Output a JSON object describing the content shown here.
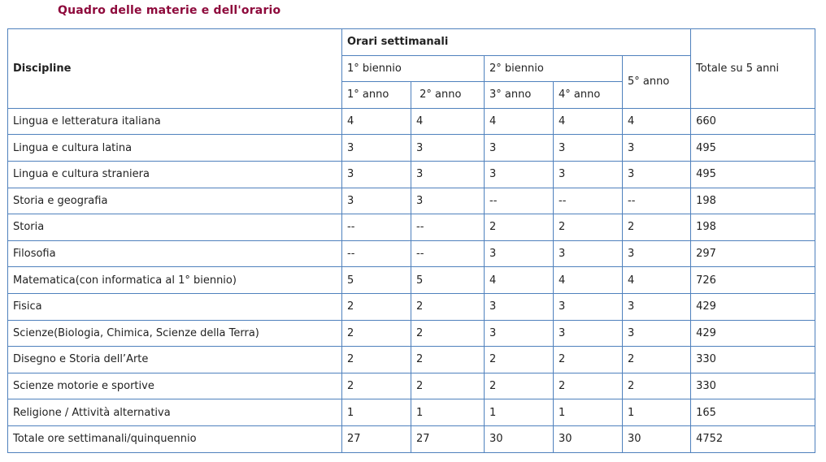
{
  "title": "Quadro delle materie e dell'orario",
  "header": {
    "discipline": "Discipline",
    "orari": "Orari settimanali",
    "biennio1": "1° biennio",
    "biennio2": "2° biennio",
    "anno5": "5° anno",
    "totale": "Totale su 5 anni",
    "anno1": "1° anno",
    "anno2": " 2° anno",
    "anno3": "3° anno",
    "anno4": "4° anno"
  },
  "colors": {
    "title": "#8e0a3c",
    "border": "#4f81bd"
  },
  "rows": [
    [
      "Lingua e letteratura italiana",
      "4",
      "4",
      "4",
      "4",
      "4",
      "660"
    ],
    [
      "Lingua e cultura latina",
      "3",
      "3",
      "3",
      "3",
      "3",
      "495"
    ],
    [
      "Lingua e cultura straniera",
      "3",
      "3",
      "3",
      "3",
      "3",
      "495"
    ],
    [
      "Storia e geografia",
      "3",
      "3",
      "--",
      "--",
      "--",
      "198"
    ],
    [
      "Storia",
      "--",
      "--",
      "2",
      "2",
      "2",
      "198"
    ],
    [
      "Filosofia",
      "--",
      "--",
      "3",
      "3",
      "3",
      "297"
    ],
    [
      "Matematica(con informatica al 1° biennio)",
      "5",
      "5",
      "4",
      "4",
      "4",
      "726"
    ],
    [
      "Fisica",
      "2",
      "2",
      "3",
      "3",
      "3",
      "429"
    ],
    [
      "Scienze(Biologia, Chimica, Scienze della Terra)",
      "2",
      "2",
      "3",
      "3",
      "3",
      "429"
    ],
    [
      "Disegno e Storia dell’Arte",
      "2",
      "2",
      "2",
      "2",
      "2",
      "330"
    ],
    [
      "Scienze motorie e sportive",
      "2",
      "2",
      "2",
      "2",
      "2",
      "330"
    ],
    [
      "Religione / Attività alternativa",
      "1",
      "1",
      "1",
      "1",
      "1",
      "165"
    ],
    [
      "Totale ore settimanali/quinquennio",
      "27",
      "27",
      "30",
      "30",
      "30",
      "4752"
    ]
  ]
}
